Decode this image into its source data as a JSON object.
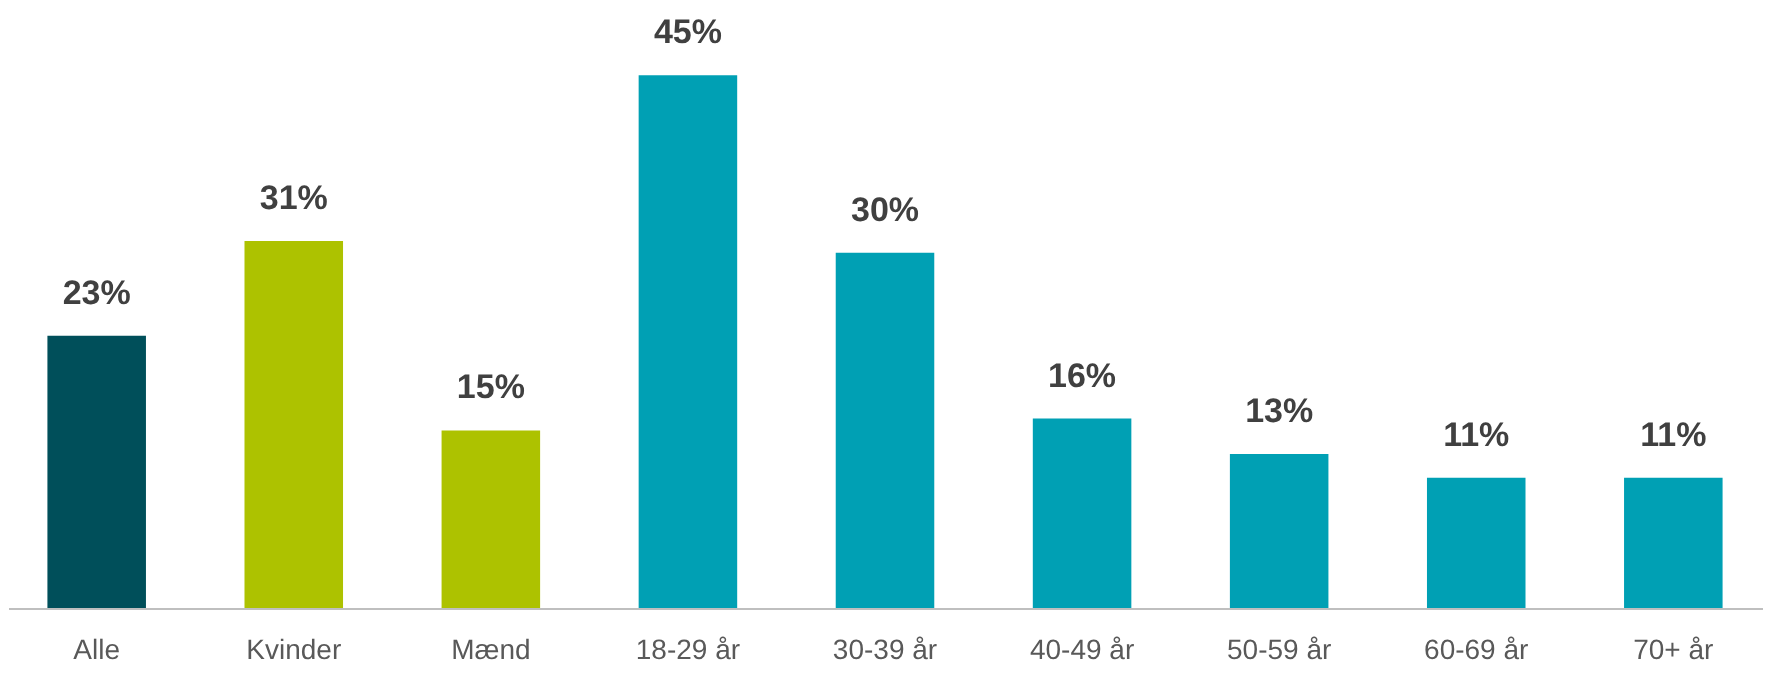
{
  "chart_data": {
    "type": "bar",
    "categories": [
      "Alle",
      "Kvinder",
      "Mænd",
      "18-29 år",
      "30-39 år",
      "40-49 år",
      "50-59 år",
      "60-69 år",
      "70+ år"
    ],
    "values": [
      23,
      31,
      15,
      45,
      30,
      16,
      13,
      11,
      11
    ],
    "colors": [
      "#004f5a",
      "#adc200",
      "#adc200",
      "#00a0b4",
      "#00a0b4",
      "#00a0b4",
      "#00a0b4",
      "#00a0b4",
      "#00a0b4"
    ],
    "value_labels": [
      "23%",
      "31%",
      "15%",
      "45%",
      "30%",
      "16%",
      "13%",
      "11%",
      "11%"
    ]
  }
}
